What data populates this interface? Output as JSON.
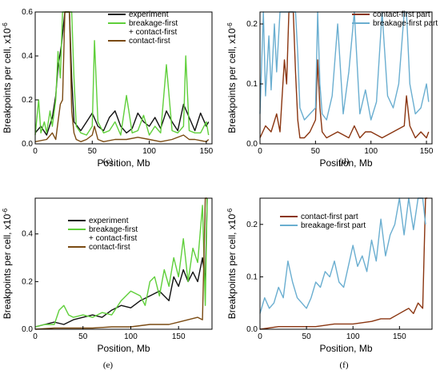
{
  "chart_data": [
    {
      "type": "line",
      "panel_label": "(c)",
      "xlabel": "Position, Mb",
      "ylabel": "Breakpoints per cell, x10",
      "ylabel_exp": "-6",
      "xlim": [
        0,
        155
      ],
      "ylim": [
        0,
        0.6
      ],
      "xticks": [
        "0",
        "50",
        "100",
        "150"
      ],
      "yticks": [
        "0.0",
        "0.2",
        "0.4",
        "0.6"
      ],
      "series": [
        {
          "name": "experiment",
          "color": "#111111",
          "x": [
            0,
            5,
            10,
            15,
            18,
            20,
            23,
            26,
            28,
            30,
            32,
            34,
            40,
            45,
            50,
            55,
            60,
            65,
            70,
            75,
            80,
            85,
            90,
            95,
            100,
            105,
            110,
            115,
            120,
            125,
            130,
            135,
            140,
            145,
            150,
            152
          ],
          "y": [
            0.05,
            0.08,
            0.04,
            0.12,
            0.22,
            0.35,
            0.45,
            0.6,
            0.6,
            0.6,
            0.3,
            0.1,
            0.06,
            0.1,
            0.14,
            0.08,
            0.06,
            0.12,
            0.15,
            0.08,
            0.05,
            0.07,
            0.14,
            0.1,
            0.08,
            0.12,
            0.07,
            0.15,
            0.1,
            0.06,
            0.18,
            0.12,
            0.06,
            0.14,
            0.08,
            0.1
          ]
        },
        {
          "name": "breakage-first + contact-first",
          "color": "#5fcf3a",
          "x": [
            0,
            3,
            5,
            8,
            10,
            13,
            15,
            18,
            20,
            22,
            24,
            26,
            28,
            30,
            32,
            34,
            36,
            40,
            45,
            50,
            52,
            55,
            60,
            65,
            70,
            75,
            80,
            85,
            90,
            95,
            100,
            105,
            110,
            115,
            120,
            125,
            130,
            132,
            135,
            140,
            145,
            150,
            152
          ],
          "y": [
            0.04,
            0.2,
            0.05,
            0.1,
            0.05,
            0.15,
            0.08,
            0.2,
            0.42,
            0.3,
            0.6,
            0.6,
            0.6,
            0.6,
            0.6,
            0.3,
            0.08,
            0.05,
            0.04,
            0.08,
            0.47,
            0.1,
            0.05,
            0.06,
            0.1,
            0.04,
            0.22,
            0.05,
            0.06,
            0.13,
            0.04,
            0.08,
            0.05,
            0.36,
            0.06,
            0.05,
            0.08,
            0.4,
            0.06,
            0.05,
            0.05,
            0.1,
            0.04
          ]
        },
        {
          "name": "contact-first",
          "color": "#7a4a12",
          "x": [
            0,
            10,
            15,
            18,
            20,
            22,
            24,
            26,
            28,
            30,
            32,
            34,
            36,
            40,
            45,
            50,
            52,
            55,
            60,
            70,
            80,
            90,
            100,
            110,
            120,
            130,
            135,
            140,
            150,
            152
          ],
          "y": [
            0.01,
            0.02,
            0.05,
            0.02,
            0.1,
            0.18,
            0.2,
            0.6,
            0.6,
            0.6,
            0.15,
            0.05,
            0.02,
            0.01,
            0.02,
            0.04,
            0.08,
            0.02,
            0.01,
            0.02,
            0.02,
            0.03,
            0.02,
            0.01,
            0.02,
            0.04,
            0.02,
            0.02,
            0.01,
            0.02
          ]
        }
      ]
    },
    {
      "type": "line",
      "panel_label": "(d)",
      "xlabel": "Position, Mb",
      "ylabel": "Breakpoints per cell, x10",
      "ylabel_exp": "-6",
      "xlim": [
        0,
        155
      ],
      "ylim": [
        0,
        0.22
      ],
      "xticks": [
        "0",
        "50",
        "100",
        "150"
      ],
      "yticks": [
        "0.0",
        "0.1",
        "0.2"
      ],
      "series": [
        {
          "name": "contact-first part",
          "color": "#8a3510",
          "x": [
            0,
            5,
            10,
            15,
            18,
            20,
            22,
            24,
            26,
            28,
            30,
            32,
            34,
            36,
            40,
            45,
            50,
            52,
            54,
            56,
            60,
            70,
            80,
            85,
            90,
            95,
            100,
            110,
            120,
            130,
            132,
            135,
            140,
            145,
            150,
            152
          ],
          "y": [
            0.01,
            0.03,
            0.02,
            0.05,
            0.02,
            0.08,
            0.14,
            0.1,
            0.22,
            0.22,
            0.22,
            0.12,
            0.04,
            0.01,
            0.01,
            0.02,
            0.04,
            0.14,
            0.06,
            0.02,
            0.01,
            0.02,
            0.01,
            0.03,
            0.01,
            0.02,
            0.02,
            0.01,
            0.02,
            0.03,
            0.08,
            0.03,
            0.01,
            0.02,
            0.01,
            0.02
          ]
        },
        {
          "name": "breakage-first part",
          "color": "#6aaed0",
          "x": [
            0,
            3,
            5,
            8,
            10,
            13,
            15,
            18,
            20,
            22,
            24,
            26,
            28,
            30,
            32,
            34,
            36,
            40,
            45,
            50,
            52,
            54,
            56,
            60,
            65,
            70,
            75,
            80,
            85,
            90,
            95,
            100,
            105,
            110,
            115,
            120,
            125,
            130,
            132,
            135,
            140,
            145,
            150,
            152
          ],
          "y": [
            0.05,
            0.22,
            0.08,
            0.18,
            0.09,
            0.2,
            0.12,
            0.22,
            0.22,
            0.22,
            0.22,
            0.22,
            0.22,
            0.22,
            0.22,
            0.15,
            0.06,
            0.04,
            0.05,
            0.06,
            0.22,
            0.1,
            0.05,
            0.04,
            0.08,
            0.2,
            0.05,
            0.12,
            0.22,
            0.05,
            0.09,
            0.04,
            0.07,
            0.22,
            0.08,
            0.06,
            0.1,
            0.22,
            0.22,
            0.1,
            0.05,
            0.06,
            0.1,
            0.07
          ]
        }
      ]
    },
    {
      "type": "line",
      "panel_label": "(e)",
      "xlabel": "Position, Mb",
      "ylabel": "Breakpoints per cell, x10",
      "ylabel_exp": "-6",
      "xlim": [
        0,
        185
      ],
      "ylim": [
        0,
        0.55
      ],
      "xticks": [
        "0",
        "50",
        "100",
        "150"
      ],
      "yticks": [
        "0.0",
        "0.2",
        "0.4"
      ],
      "series": [
        {
          "name": "experiment",
          "color": "#111111",
          "x": [
            0,
            10,
            20,
            30,
            40,
            50,
            60,
            70,
            80,
            90,
            100,
            110,
            120,
            130,
            140,
            145,
            150,
            155,
            160,
            165,
            170,
            175,
            178,
            180
          ],
          "y": [
            0.01,
            0.02,
            0.03,
            0.02,
            0.04,
            0.05,
            0.06,
            0.05,
            0.08,
            0.1,
            0.09,
            0.12,
            0.14,
            0.16,
            0.12,
            0.22,
            0.18,
            0.25,
            0.2,
            0.24,
            0.2,
            0.3,
            0.2,
            0.55
          ]
        },
        {
          "name": "breakage-first + contact-first",
          "color": "#5fcf3a",
          "x": [
            0,
            10,
            20,
            25,
            30,
            35,
            40,
            50,
            60,
            70,
            80,
            90,
            100,
            110,
            115,
            120,
            125,
            130,
            135,
            140,
            145,
            150,
            155,
            160,
            165,
            170,
            175,
            178,
            180
          ],
          "y": [
            0.01,
            0.02,
            0.02,
            0.08,
            0.1,
            0.06,
            0.05,
            0.06,
            0.05,
            0.07,
            0.06,
            0.12,
            0.16,
            0.14,
            0.1,
            0.2,
            0.22,
            0.14,
            0.25,
            0.18,
            0.3,
            0.22,
            0.38,
            0.2,
            0.34,
            0.28,
            0.52,
            0.1,
            0.55
          ]
        },
        {
          "name": "contact-first",
          "color": "#7a4a12",
          "x": [
            0,
            20,
            40,
            60,
            80,
            100,
            120,
            140,
            150,
            160,
            170,
            175,
            178,
            180
          ],
          "y": [
            0.0,
            0.005,
            0.005,
            0.005,
            0.01,
            0.01,
            0.02,
            0.02,
            0.03,
            0.04,
            0.05,
            0.04,
            0.55,
            0.55
          ]
        }
      ]
    },
    {
      "type": "line",
      "panel_label": "(f)",
      "xlabel": "Position, Mb",
      "ylabel": "Breakpoints per cell, x10",
      "ylabel_exp": "-6",
      "xlim": [
        0,
        185
      ],
      "ylim": [
        0,
        0.25
      ],
      "xticks": [
        "0",
        "50",
        "100",
        "150"
      ],
      "yticks": [
        "0.0",
        "0.1",
        "0.2"
      ],
      "series": [
        {
          "name": "contact-first part",
          "color": "#8a3510",
          "x": [
            0,
            20,
            40,
            60,
            80,
            100,
            120,
            130,
            140,
            150,
            160,
            165,
            170,
            175,
            178,
            180
          ],
          "y": [
            0.0,
            0.005,
            0.005,
            0.005,
            0.01,
            0.01,
            0.015,
            0.02,
            0.02,
            0.03,
            0.04,
            0.03,
            0.05,
            0.04,
            0.25,
            0.25
          ]
        },
        {
          "name": "breakage-first part",
          "color": "#6aaed0",
          "x": [
            0,
            5,
            10,
            15,
            20,
            25,
            30,
            35,
            40,
            45,
            50,
            55,
            60,
            65,
            70,
            75,
            80,
            85,
            90,
            95,
            100,
            105,
            110,
            115,
            120,
            125,
            130,
            135,
            140,
            145,
            150,
            155,
            160,
            165,
            170,
            175,
            178
          ],
          "y": [
            0.03,
            0.06,
            0.04,
            0.05,
            0.08,
            0.06,
            0.13,
            0.09,
            0.06,
            0.05,
            0.04,
            0.06,
            0.09,
            0.08,
            0.11,
            0.1,
            0.13,
            0.09,
            0.08,
            0.12,
            0.16,
            0.12,
            0.14,
            0.11,
            0.17,
            0.13,
            0.21,
            0.14,
            0.18,
            0.2,
            0.25,
            0.18,
            0.25,
            0.19,
            0.25,
            0.25,
            0.2
          ]
        }
      ]
    }
  ]
}
